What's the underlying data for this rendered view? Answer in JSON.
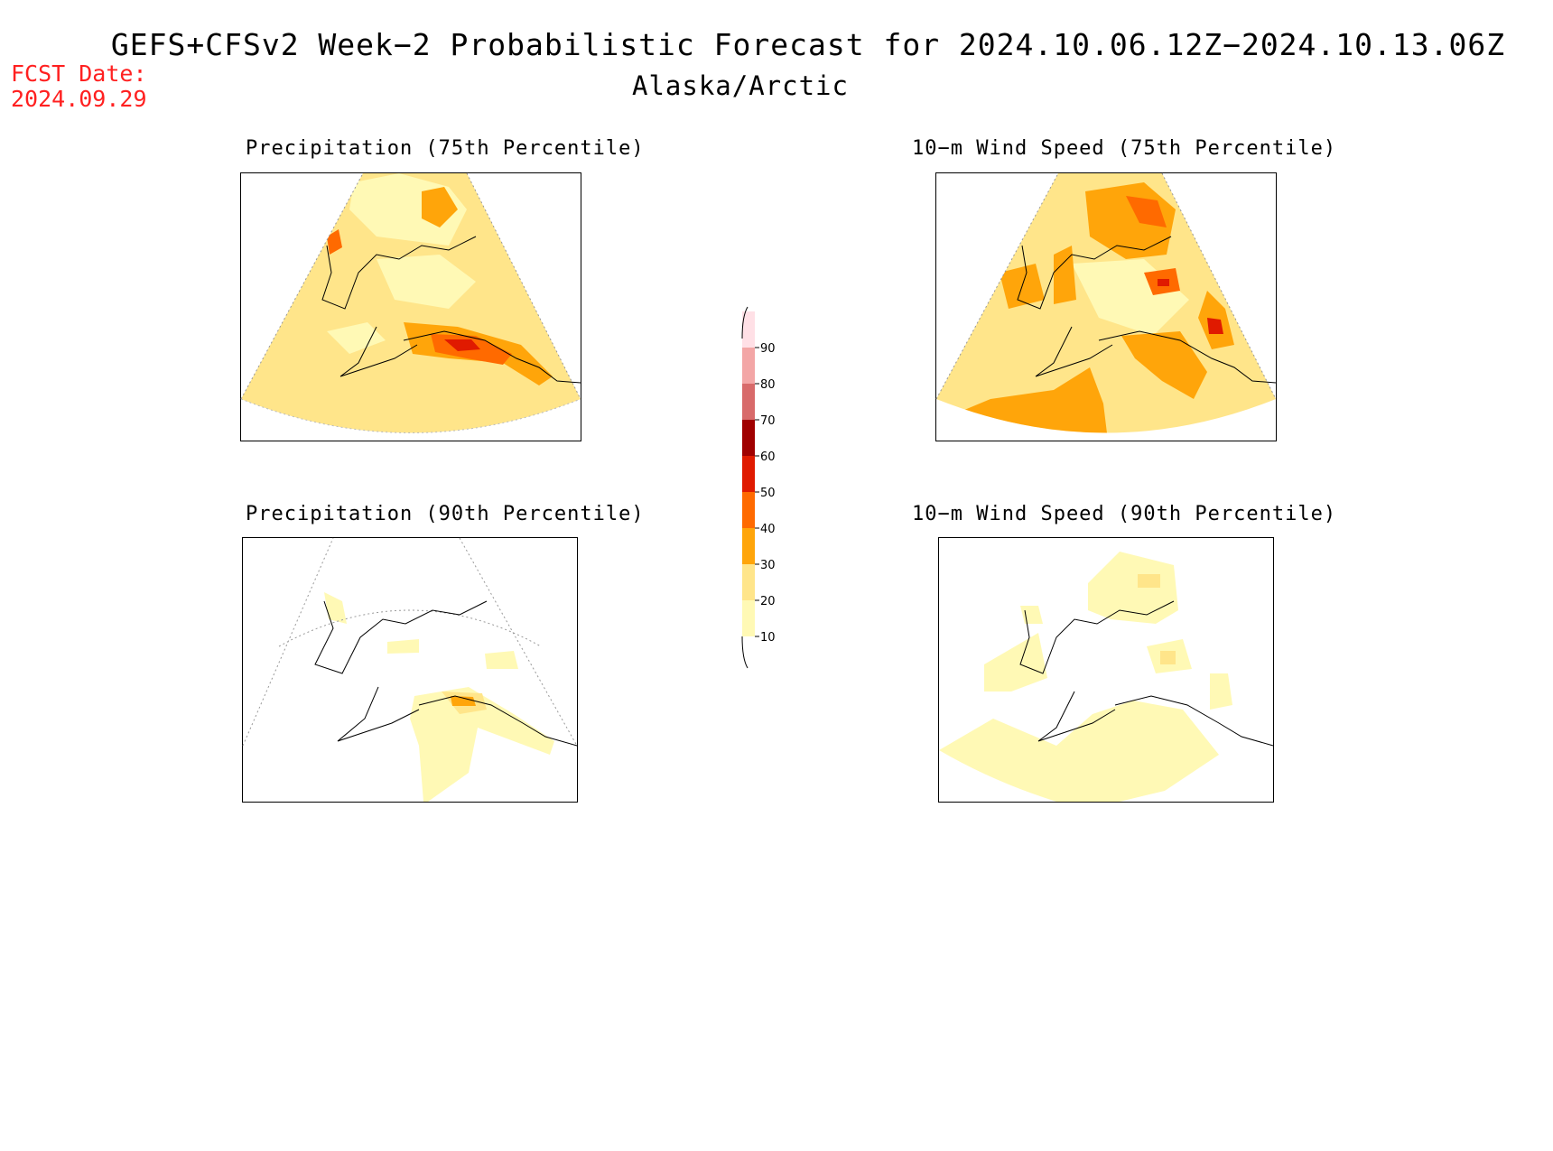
{
  "title": "GEFS+CFSv2 Week−2 Probabilistic Forecast for 2024.10.06.12Z−2024.10.13.06Z",
  "region": "Alaska/Arctic",
  "fcst_date_label": "FCST Date:",
  "fcst_date": "2024.09.29",
  "panels": [
    {
      "title": "Precipitation (75th Percentile)"
    },
    {
      "title": "10−m Wind Speed (75th Percentile)"
    },
    {
      "title": "Precipitation (90th Percentile)"
    },
    {
      "title": "10−m Wind Speed (90th Percentile)"
    }
  ],
  "colorbar": {
    "levels": [
      "10",
      "20",
      "30",
      "40",
      "50",
      "60",
      "70",
      "80",
      "90"
    ],
    "colors": [
      "#fff9b5",
      "#ffe58a",
      "#ffa50a",
      "#ff6a00",
      "#e01a00",
      "#a00000",
      "#d86a6a",
      "#f3a6a6",
      "#ffe0e6"
    ]
  }
}
